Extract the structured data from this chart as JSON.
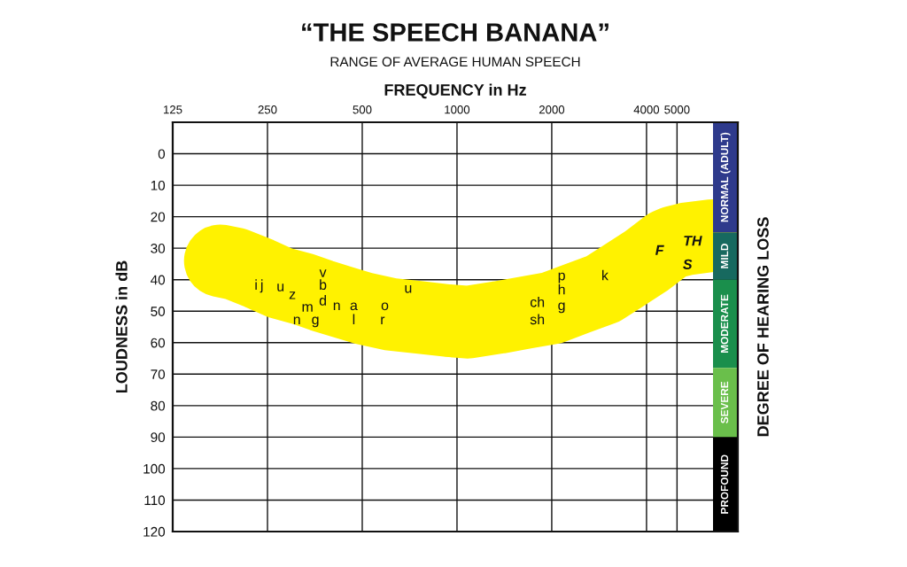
{
  "chart_data": {
    "type": "line",
    "title": "“THE SPEECH BANANA”",
    "subtitle": "RANGE OF AVERAGE HUMAN SPEECH",
    "xlabel": "FREQUENCY in Hz",
    "ylabel": "LOUDNESS in dB",
    "y2label": "DEGREE OF HEARING LOSS",
    "log": "x",
    "xlim": [
      125,
      7800
    ],
    "xticks": [
      125,
      250,
      500,
      1000,
      2000,
      4000,
      5000
    ],
    "ylim": [
      120,
      -10
    ],
    "yticks": [
      0,
      10,
      20,
      30,
      40,
      50,
      60,
      70,
      80,
      90,
      100,
      110,
      120
    ],
    "grid": true,
    "series": [
      {
        "color": "#fff200",
        "x": [
          177,
          198,
          235,
          274,
          325,
          370,
          430,
          500,
          615,
          760,
          935,
          1080,
          1355,
          1640,
          2000,
          2400,
          2900,
          3350,
          4000,
          4650,
          4900,
          5400,
          6480
        ],
        "values": [
          34,
          35,
          38,
          41,
          43,
          45,
          47,
          49,
          51,
          52,
          53,
          53.5,
          52,
          50.5,
          49,
          46,
          43,
          39,
          34,
          29,
          28,
          27,
          26
        ]
      }
    ],
    "bands": [
      {
        "axis": "y",
        "from": -10,
        "to": 25,
        "label": "NORMAL (ADULT)",
        "color": "#2e3a8c"
      },
      {
        "axis": "y",
        "from": 25,
        "to": 40,
        "label": "MILD",
        "color": "#17695f"
      },
      {
        "axis": "y",
        "from": 40,
        "to": 68,
        "label": "MODERATE",
        "color": "#1a8f4c"
      },
      {
        "axis": "y",
        "from": 68,
        "to": 90,
        "label": "SEVERE",
        "color": "#6abf4b"
      },
      {
        "axis": "y",
        "from": 90,
        "to": 120,
        "label": "PROFOUND",
        "color": "#000000"
      }
    ],
    "annotations": [
      {
        "text": "i",
        "x": 230,
        "y": 42
      },
      {
        "text": "j",
        "x": 240,
        "y": 42
      },
      {
        "text": "u",
        "x": 275,
        "y": 42.5
      },
      {
        "text": "z",
        "x": 300,
        "y": 45
      },
      {
        "text": "v",
        "x": 375,
        "y": 38
      },
      {
        "text": "b",
        "x": 375,
        "y": 42
      },
      {
        "text": "d",
        "x": 375,
        "y": 47
      },
      {
        "text": "m",
        "x": 335,
        "y": 49
      },
      {
        "text": "n",
        "x": 415,
        "y": 48.5
      },
      {
        "text": "a",
        "x": 470,
        "y": 48.5
      },
      {
        "text": "n",
        "x": 310,
        "y": 53
      },
      {
        "text": "g",
        "x": 355,
        "y": 53
      },
      {
        "text": "l",
        "x": 470,
        "y": 53
      },
      {
        "text": "o",
        "x": 590,
        "y": 48.5
      },
      {
        "text": "r",
        "x": 580,
        "y": 53
      },
      {
        "text": "u",
        "x": 700,
        "y": 43
      },
      {
        "text": "ch",
        "x": 1800,
        "y": 47.5
      },
      {
        "text": "sh",
        "x": 1800,
        "y": 53
      },
      {
        "text": "p",
        "x": 2150,
        "y": 39
      },
      {
        "text": "h",
        "x": 2150,
        "y": 43.5
      },
      {
        "text": "g",
        "x": 2150,
        "y": 48.5
      },
      {
        "text": "k",
        "x": 2950,
        "y": 39
      },
      {
        "text": "F",
        "x": 4400,
        "y": 31
      },
      {
        "text": "TH",
        "x": 5600,
        "y": 28
      },
      {
        "text": "S",
        "x": 5400,
        "y": 35.5
      }
    ]
  }
}
